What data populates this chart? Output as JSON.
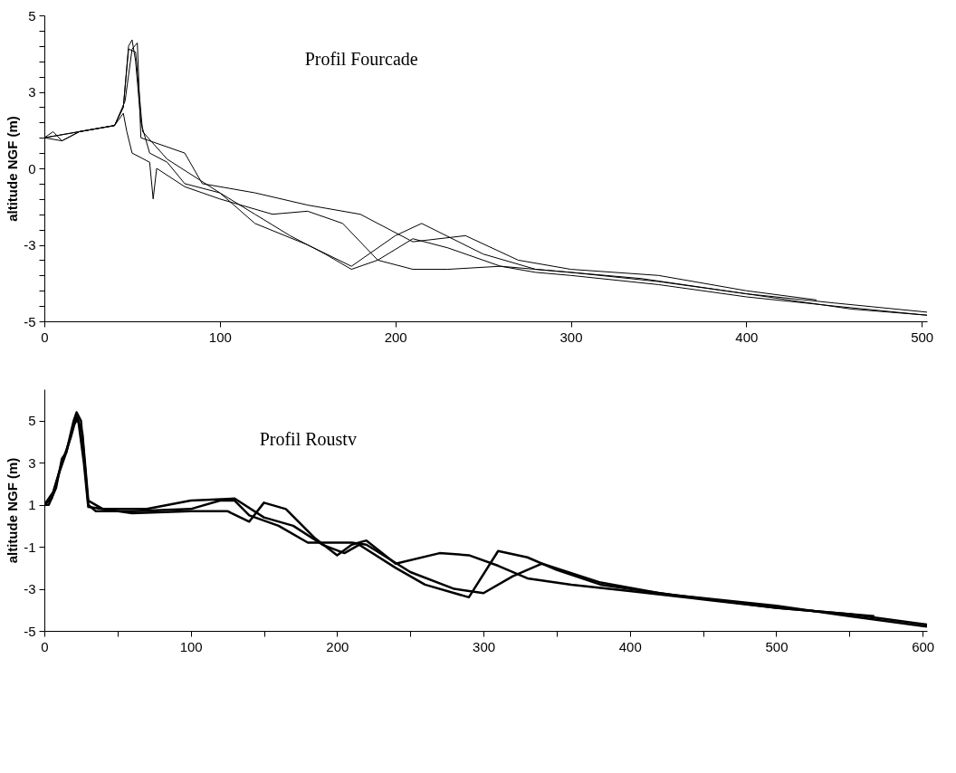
{
  "chart_data": [
    {
      "type": "line",
      "title": "Profil Fourcade",
      "ylabel": "altitude NGF (m)",
      "xlim": [
        0,
        503
      ],
      "ylim": [
        -5,
        5
      ],
      "xticks": [
        0,
        100,
        200,
        300,
        400,
        500
      ],
      "yticks": [
        -5,
        {
          "value": -4.5,
          "label": null
        },
        {
          "value": -4,
          "label": null
        },
        {
          "value": -3.5,
          "label": null
        },
        {
          "value": -3,
          "label": null
        },
        {
          "value": -2.5,
          "label": "-3"
        },
        {
          "value": -2,
          "label": null
        },
        {
          "value": -1.5,
          "label": null
        },
        {
          "value": -1,
          "label": null
        },
        {
          "value": -0.5,
          "label": null
        },
        0,
        {
          "value": 0.5,
          "label": null
        },
        {
          "value": 1,
          "label": null
        },
        {
          "value": 1.5,
          "label": null
        },
        {
          "value": 2,
          "label": null
        },
        {
          "value": 2.5,
          "label": "3"
        },
        {
          "value": 3,
          "label": null
        },
        {
          "value": 3.5,
          "label": null
        },
        {
          "value": 4,
          "label": null
        },
        {
          "value": 4.5,
          "label": null
        },
        5
      ],
      "series": [
        {
          "color": "#000000",
          "x": [
            0,
            5,
            10,
            20,
            30,
            40,
            45,
            48,
            50,
            52,
            55,
            60,
            70,
            80,
            100,
            120,
            140,
            160,
            175,
            190,
            210,
            230,
            260,
            280,
            300,
            350,
            400,
            450,
            503
          ],
          "values": [
            1.0,
            1.2,
            0.9,
            1.2,
            1.3,
            1.4,
            2.0,
            4.0,
            4.2,
            3.5,
            1.5,
            0.5,
            0.2,
            -0.5,
            -0.8,
            -1.5,
            -2.2,
            -2.8,
            -3.3,
            -3.0,
            -2.3,
            -2.6,
            -3.2,
            -3.4,
            -3.5,
            -3.8,
            -4.2,
            -4.5,
            -4.8
          ]
        },
        {
          "color": "#000000",
          "x": [
            0,
            10,
            20,
            30,
            40,
            45,
            47,
            50,
            60,
            62,
            64,
            80,
            100,
            130,
            150,
            170,
            190,
            210,
            230,
            260,
            300,
            350,
            400,
            450,
            503
          ],
          "values": [
            1.0,
            0.9,
            1.2,
            1.3,
            1.4,
            1.8,
            1.2,
            0.5,
            0.2,
            -1.0,
            0.0,
            -0.6,
            -1.0,
            -1.5,
            -1.4,
            -1.8,
            -3.0,
            -3.3,
            -3.3,
            -3.2,
            -3.4,
            -3.7,
            -4.1,
            -4.4,
            -4.7
          ]
        },
        {
          "color": "#000000",
          "x": [
            0,
            20,
            40,
            45,
            48,
            52,
            56,
            70,
            100,
            120,
            150,
            175,
            200,
            215,
            250,
            280,
            340,
            400,
            460,
            503
          ],
          "values": [
            1.0,
            1.2,
            1.4,
            2.0,
            3.9,
            3.8,
            1.2,
            0.3,
            -0.8,
            -1.8,
            -2.5,
            -3.2,
            -2.2,
            -1.8,
            -2.8,
            -3.3,
            -3.6,
            -4.1,
            -4.6,
            -4.8
          ]
        },
        {
          "color": "#000000",
          "x": [
            0,
            20,
            40,
            46,
            50,
            53,
            55,
            80,
            90,
            120,
            150,
            180,
            210,
            240,
            270,
            300,
            350,
            400,
            440
          ],
          "values": [
            1.0,
            1.2,
            1.4,
            2.2,
            3.9,
            4.1,
            1.0,
            0.5,
            -0.5,
            -0.8,
            -1.2,
            -1.5,
            -2.4,
            -2.2,
            -3.0,
            -3.3,
            -3.5,
            -4.0,
            -4.3
          ]
        }
      ]
    },
    {
      "type": "line",
      "title": "Profil Roustv",
      "ylabel": "altitude NGF (m)",
      "xlim": [
        0,
        603
      ],
      "ylim": [
        -5,
        6.5
      ],
      "xticks": [
        0,
        {
          "value": 50,
          "label": null
        },
        100,
        {
          "value": 150,
          "label": null
        },
        200,
        {
          "value": 250,
          "label": null
        },
        300,
        {
          "value": 350,
          "label": null
        },
        400,
        {
          "value": 450,
          "label": null
        },
        500,
        {
          "value": 550,
          "label": null
        },
        600
      ],
      "yticks": [
        -5,
        -3,
        -1,
        1,
        3,
        5
      ],
      "series": [
        {
          "color": "#000000",
          "x": [
            0,
            3,
            8,
            12,
            15,
            20,
            22,
            25,
            30,
            35,
            60,
            100,
            120,
            130,
            140,
            160,
            180,
            210,
            220,
            250,
            280,
            300,
            320,
            340,
            380,
            420,
            500,
            550,
            603
          ],
          "values": [
            1.0,
            1.0,
            1.8,
            3.2,
            3.5,
            5.0,
            5.4,
            5.0,
            1.0,
            0.7,
            0.7,
            0.8,
            1.2,
            1.2,
            0.5,
            0.0,
            -0.8,
            -0.8,
            -0.9,
            -2.2,
            -3.0,
            -3.2,
            -2.4,
            -1.8,
            -2.7,
            -3.2,
            -3.9,
            -4.2,
            -4.7
          ]
        },
        {
          "color": "#000000",
          "x": [
            0,
            5,
            10,
            15,
            20,
            23,
            27,
            30,
            60,
            100,
            125,
            140,
            150,
            165,
            185,
            200,
            210,
            220,
            240,
            270,
            290,
            310,
            330,
            360,
            400,
            450,
            500,
            567
          ],
          "values": [
            1.0,
            1.3,
            2.5,
            3.5,
            4.8,
            5.1,
            3.0,
            0.9,
            0.6,
            0.7,
            0.7,
            0.2,
            1.1,
            0.8,
            -0.6,
            -1.4,
            -0.9,
            -0.7,
            -1.8,
            -1.3,
            -1.4,
            -1.9,
            -2.5,
            -2.8,
            -3.1,
            -3.5,
            -3.9,
            -4.3
          ]
        },
        {
          "color": "#000000",
          "x": [
            0,
            6,
            12,
            18,
            22,
            26,
            30,
            40,
            70,
            100,
            130,
            150,
            170,
            190,
            205,
            215,
            240,
            260,
            290,
            310,
            330,
            350,
            380,
            430,
            500,
            550,
            603
          ],
          "values": [
            1.0,
            1.6,
            3.0,
            4.2,
            5.2,
            4.4,
            1.2,
            0.8,
            0.8,
            1.2,
            1.3,
            0.4,
            0.0,
            -0.9,
            -1.3,
            -0.9,
            -2.0,
            -2.8,
            -3.4,
            -1.2,
            -1.5,
            -2.1,
            -2.8,
            -3.3,
            -3.8,
            -4.3,
            -4.8
          ]
        }
      ]
    }
  ]
}
